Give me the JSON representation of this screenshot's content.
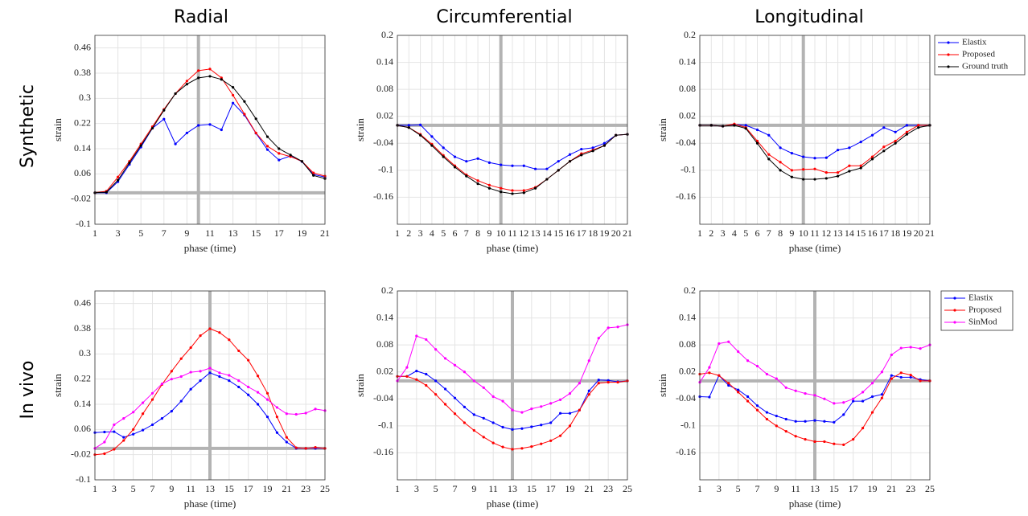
{
  "column_titles": [
    "Radial",
    "Circumferential",
    "Longitudinal"
  ],
  "row_labels": [
    "Synthetic",
    "In vivo"
  ],
  "chart_data": [
    {
      "type": "line",
      "xlabel": "phase (time)",
      "ylabel": "strain",
      "x": [
        1,
        2,
        3,
        4,
        5,
        6,
        7,
        8,
        9,
        10,
        11,
        12,
        13,
        14,
        15,
        16,
        17,
        18,
        19,
        20,
        21
      ],
      "xlim": [
        1,
        21
      ],
      "xticks": [
        1,
        3,
        5,
        7,
        9,
        11,
        13,
        15,
        17,
        19,
        21
      ],
      "ylim": [
        -0.1,
        0.5
      ],
      "yticks": [
        -0.1,
        -0.02,
        0.06,
        0.14,
        0.22,
        0.3,
        0.38,
        0.46
      ],
      "grid": true,
      "vline": 10,
      "hline": 0,
      "series": [
        {
          "name": "Elastix",
          "color": "#0000ff",
          "values": [
            0,
            0,
            0.035,
            0.09,
            0.145,
            0.205,
            0.234,
            0.155,
            0.19,
            0.214,
            0.217,
            0.2,
            0.285,
            0.247,
            0.189,
            0.137,
            0.104,
            0.117,
            0.099,
            0.058,
            0.05
          ]
        },
        {
          "name": "Proposed",
          "color": "#ff0000",
          "values": [
            0,
            0.005,
            0.05,
            0.1,
            0.155,
            0.21,
            0.265,
            0.315,
            0.355,
            0.388,
            0.393,
            0.365,
            0.31,
            0.25,
            0.19,
            0.148,
            0.125,
            0.115,
            0.1,
            0.063,
            0.053
          ]
        },
        {
          "name": "Ground truth",
          "color": "#000000",
          "values": [
            0,
            0.002,
            0.04,
            0.095,
            0.15,
            0.205,
            0.262,
            0.315,
            0.345,
            0.365,
            0.37,
            0.36,
            0.335,
            0.29,
            0.235,
            0.178,
            0.14,
            0.12,
            0.1,
            0.055,
            0.045
          ]
        }
      ]
    },
    {
      "type": "line",
      "xlabel": "phase (time)",
      "ylabel": "strain",
      "x": [
        1,
        2,
        3,
        4,
        5,
        6,
        7,
        8,
        9,
        10,
        11,
        12,
        13,
        14,
        15,
        16,
        17,
        18,
        19,
        20,
        21
      ],
      "xlim": [
        1,
        21
      ],
      "xticks": [
        1,
        2,
        3,
        4,
        5,
        6,
        7,
        8,
        9,
        10,
        11,
        12,
        13,
        14,
        15,
        16,
        17,
        18,
        19,
        20,
        21
      ],
      "ylim": [
        -0.22,
        0.2
      ],
      "yticks": [
        -0.16,
        -0.1,
        -0.04,
        0.02,
        0.08,
        0.14,
        0.2
      ],
      "grid": true,
      "vline": 10,
      "hline": 0,
      "series": [
        {
          "name": "Elastix",
          "color": "#0000ff",
          "values": [
            0,
            0,
            0.001,
            -0.025,
            -0.05,
            -0.07,
            -0.08,
            -0.074,
            -0.083,
            -0.088,
            -0.09,
            -0.09,
            -0.097,
            -0.097,
            -0.08,
            -0.065,
            -0.053,
            -0.05,
            -0.04,
            -0.022,
            -0.02
          ]
        },
        {
          "name": "Proposed",
          "color": "#ff0000",
          "values": [
            0,
            -0.005,
            -0.02,
            -0.042,
            -0.067,
            -0.09,
            -0.11,
            -0.123,
            -0.133,
            -0.14,
            -0.145,
            -0.145,
            -0.138,
            -0.12,
            -0.1,
            -0.08,
            -0.063,
            -0.055,
            -0.045,
            -0.022,
            -0.02
          ]
        },
        {
          "name": "Ground truth",
          "color": "#000000",
          "values": [
            0,
            -0.005,
            -0.022,
            -0.045,
            -0.07,
            -0.093,
            -0.113,
            -0.13,
            -0.14,
            -0.148,
            -0.152,
            -0.15,
            -0.14,
            -0.12,
            -0.1,
            -0.08,
            -0.066,
            -0.057,
            -0.045,
            -0.022,
            -0.02
          ]
        }
      ]
    },
    {
      "type": "line",
      "xlabel": "phase (time)",
      "ylabel": "strain",
      "x": [
        1,
        2,
        3,
        4,
        5,
        6,
        7,
        8,
        9,
        10,
        11,
        12,
        13,
        14,
        15,
        16,
        17,
        18,
        19,
        20,
        21
      ],
      "xlim": [
        1,
        21
      ],
      "xticks": [
        1,
        2,
        3,
        4,
        5,
        6,
        7,
        8,
        9,
        10,
        11,
        12,
        13,
        14,
        15,
        16,
        17,
        18,
        19,
        20,
        21
      ],
      "ylim": [
        -0.22,
        0.2
      ],
      "yticks": [
        -0.16,
        -0.1,
        -0.04,
        0.02,
        0.08,
        0.14,
        0.2
      ],
      "grid": true,
      "vline": 10,
      "hline": 0,
      "legend": "outside right",
      "series": [
        {
          "name": "Elastix",
          "color": "#0000ff",
          "values": [
            0,
            0,
            -0.002,
            0.002,
            0,
            -0.01,
            -0.022,
            -0.05,
            -0.062,
            -0.07,
            -0.073,
            -0.072,
            -0.055,
            -0.05,
            -0.037,
            -0.022,
            -0.005,
            -0.015,
            0,
            0,
            0
          ]
        },
        {
          "name": "Proposed",
          "color": "#ff0000",
          "values": [
            0,
            0,
            -0.002,
            0.003,
            -0.005,
            -0.035,
            -0.065,
            -0.082,
            -0.1,
            -0.098,
            -0.097,
            -0.105,
            -0.105,
            -0.09,
            -0.09,
            -0.07,
            -0.048,
            -0.035,
            -0.015,
            0,
            0
          ]
        },
        {
          "name": "Ground truth",
          "color": "#000000",
          "values": [
            0,
            0,
            -0.002,
            0,
            -0.007,
            -0.04,
            -0.075,
            -0.1,
            -0.115,
            -0.12,
            -0.12,
            -0.118,
            -0.113,
            -0.102,
            -0.095,
            -0.075,
            -0.057,
            -0.04,
            -0.02,
            -0.005,
            0
          ]
        }
      ]
    },
    {
      "type": "line",
      "xlabel": "phase (time)",
      "ylabel": "strain",
      "x": [
        1,
        2,
        3,
        4,
        5,
        6,
        7,
        8,
        9,
        10,
        11,
        12,
        13,
        14,
        15,
        16,
        17,
        18,
        19,
        20,
        21,
        22,
        23,
        24,
        25
      ],
      "xlim": [
        1,
        25
      ],
      "xticks": [
        1,
        3,
        5,
        7,
        9,
        11,
        13,
        15,
        17,
        19,
        21,
        23,
        25
      ],
      "ylim": [
        -0.1,
        0.5
      ],
      "yticks": [
        -0.1,
        -0.02,
        0.06,
        0.14,
        0.22,
        0.3,
        0.38,
        0.46
      ],
      "grid": true,
      "vline": 13,
      "hline": 0,
      "series": [
        {
          "name": "Elastix",
          "color": "#0000ff",
          "values": [
            0.05,
            0.052,
            0.053,
            0.035,
            0.045,
            0.058,
            0.075,
            0.095,
            0.118,
            0.15,
            0.188,
            0.215,
            0.24,
            0.228,
            0.215,
            0.195,
            0.17,
            0.14,
            0.1,
            0.05,
            0.02,
            0,
            0,
            0,
            0
          ]
        },
        {
          "name": "Proposed",
          "color": "#ff0000",
          "values": [
            -0.02,
            -0.017,
            -0.003,
            0.025,
            0.06,
            0.11,
            0.155,
            0.203,
            0.245,
            0.285,
            0.32,
            0.358,
            0.38,
            0.368,
            0.345,
            0.31,
            0.28,
            0.23,
            0.175,
            0.1,
            0.035,
            0.002,
            0,
            0.003,
            0
          ]
        },
        {
          "name": "SinMod",
          "color": "#ff00ff",
          "values": [
            0,
            0.02,
            0.075,
            0.095,
            0.115,
            0.145,
            0.175,
            0.205,
            0.22,
            0.228,
            0.242,
            0.245,
            0.255,
            0.24,
            0.232,
            0.215,
            0.195,
            0.178,
            0.155,
            0.13,
            0.11,
            0.108,
            0.112,
            0.125,
            0.12
          ]
        }
      ]
    },
    {
      "type": "line",
      "xlabel": "phase (time)",
      "ylabel": "strain",
      "x": [
        1,
        2,
        3,
        4,
        5,
        6,
        7,
        8,
        9,
        10,
        11,
        12,
        13,
        14,
        15,
        16,
        17,
        18,
        19,
        20,
        21,
        22,
        23,
        24,
        25
      ],
      "xlim": [
        1,
        25
      ],
      "xticks": [
        1,
        3,
        5,
        7,
        9,
        11,
        13,
        15,
        17,
        19,
        21,
        23,
        25
      ],
      "ylim": [
        -0.22,
        0.2
      ],
      "yticks": [
        -0.16,
        -0.1,
        -0.04,
        0.02,
        0.08,
        0.14,
        0.2
      ],
      "grid": true,
      "vline": 13,
      "hline": 0,
      "series": [
        {
          "name": "Elastix",
          "color": "#0000ff",
          "values": [
            0.01,
            0.01,
            0.022,
            0.015,
            0,
            -0.018,
            -0.038,
            -0.058,
            -0.075,
            -0.083,
            -0.093,
            -0.103,
            -0.108,
            -0.106,
            -0.102,
            -0.098,
            -0.093,
            -0.072,
            -0.072,
            -0.065,
            -0.022,
            0.002,
            0.001,
            -0.002,
            0
          ]
        },
        {
          "name": "Proposed",
          "color": "#ff0000",
          "values": [
            0.01,
            0.01,
            0.003,
            -0.01,
            -0.03,
            -0.052,
            -0.073,
            -0.093,
            -0.11,
            -0.125,
            -0.138,
            -0.147,
            -0.152,
            -0.15,
            -0.146,
            -0.14,
            -0.133,
            -0.122,
            -0.1,
            -0.065,
            -0.03,
            -0.005,
            -0.003,
            -0.003,
            0
          ]
        },
        {
          "name": "SinMod",
          "color": "#ff00ff",
          "values": [
            0,
            0.03,
            0.1,
            0.092,
            0.07,
            0.05,
            0.035,
            0.02,
            0,
            -0.015,
            -0.035,
            -0.045,
            -0.065,
            -0.07,
            -0.062,
            -0.057,
            -0.05,
            -0.042,
            -0.028,
            -0.005,
            0.045,
            0.095,
            0.118,
            0.12,
            0.125
          ]
        }
      ]
    },
    {
      "type": "line",
      "xlabel": "phase (time)",
      "ylabel": "strain",
      "x": [
        1,
        2,
        3,
        4,
        5,
        6,
        7,
        8,
        9,
        10,
        11,
        12,
        13,
        14,
        15,
        16,
        17,
        18,
        19,
        20,
        21,
        22,
        23,
        24,
        25
      ],
      "xlim": [
        1,
        25
      ],
      "xticks": [
        1,
        3,
        5,
        7,
        9,
        11,
        13,
        15,
        17,
        19,
        21,
        23,
        25
      ],
      "ylim": [
        -0.22,
        0.2
      ],
      "yticks": [
        -0.16,
        -0.1,
        -0.04,
        0.02,
        0.08,
        0.14,
        0.2
      ],
      "grid": true,
      "vline": 13,
      "hline": 0,
      "legend": "outside right",
      "series": [
        {
          "name": "Elastix",
          "color": "#0000ff",
          "values": [
            -0.035,
            -0.036,
            0.012,
            -0.01,
            -0.02,
            -0.035,
            -0.055,
            -0.07,
            -0.078,
            -0.085,
            -0.09,
            -0.09,
            -0.088,
            -0.09,
            -0.092,
            -0.075,
            -0.045,
            -0.045,
            -0.035,
            -0.03,
            0.012,
            0.008,
            0.008,
            0.003,
            0
          ]
        },
        {
          "name": "Proposed",
          "color": "#ff0000",
          "values": [
            0.015,
            0.018,
            0.012,
            -0.005,
            -0.025,
            -0.045,
            -0.065,
            -0.085,
            -0.1,
            -0.112,
            -0.123,
            -0.13,
            -0.135,
            -0.135,
            -0.14,
            -0.142,
            -0.13,
            -0.105,
            -0.07,
            -0.038,
            0.005,
            0.018,
            0.013,
            0,
            0
          ]
        },
        {
          "name": "SinMod",
          "color": "#ff00ff",
          "values": [
            -0.003,
            0.03,
            0.083,
            0.087,
            0.065,
            0.045,
            0.033,
            0.015,
            0.005,
            -0.015,
            -0.022,
            -0.028,
            -0.032,
            -0.04,
            -0.05,
            -0.048,
            -0.04,
            -0.025,
            -0.005,
            0.02,
            0.058,
            0.073,
            0.075,
            0.072,
            0.08
          ]
        }
      ]
    }
  ]
}
